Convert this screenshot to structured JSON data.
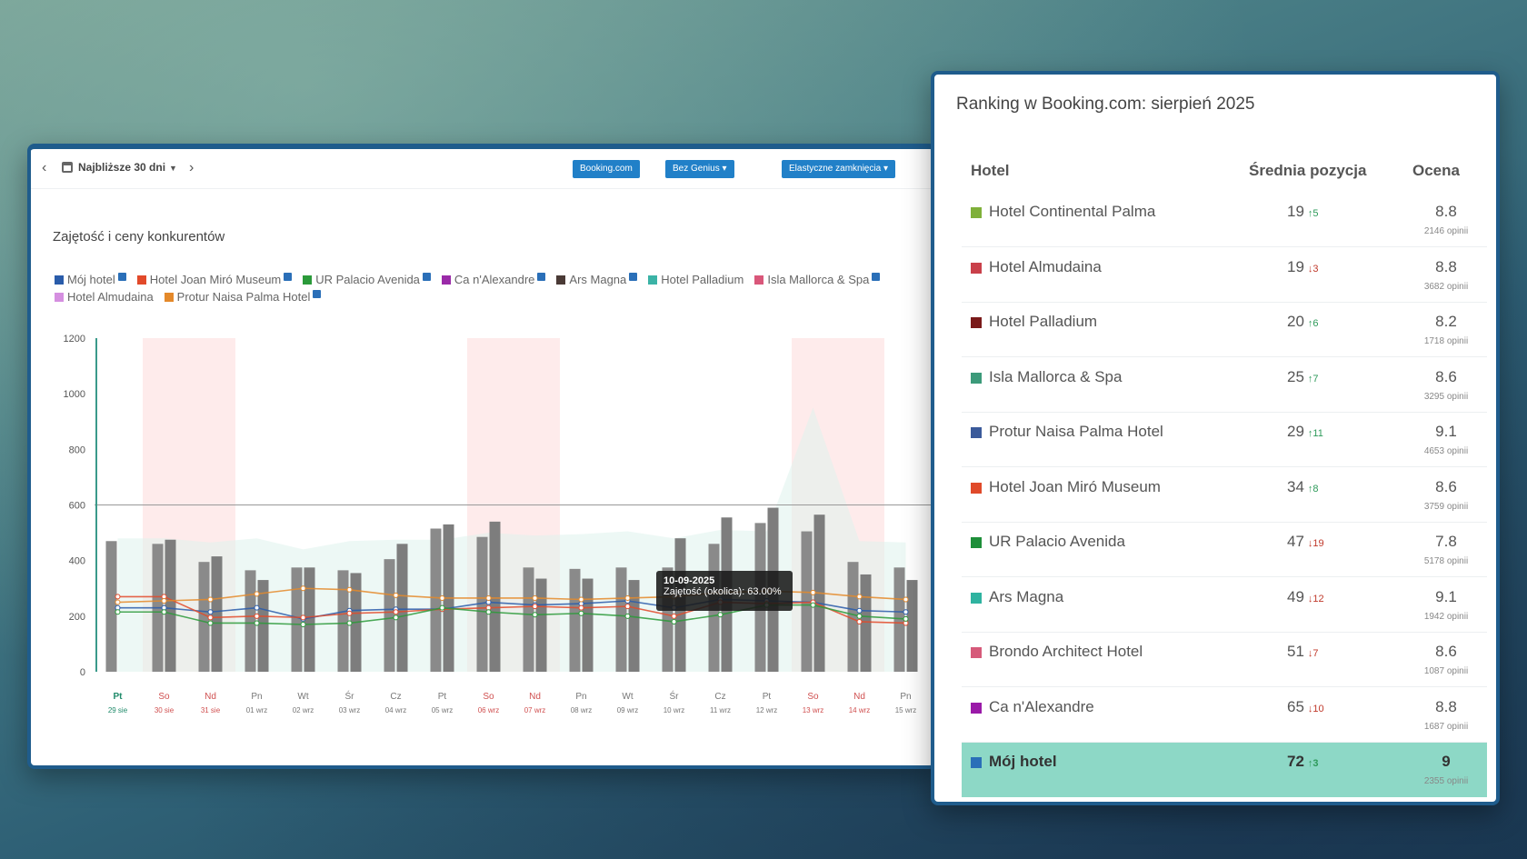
{
  "toolbar": {
    "range_label": "Najbliższe 30 dni",
    "btn_booking": "Booking.com",
    "btn_genius": "Bez Genius",
    "btn_closures": "Elastyczne zamknięcia"
  },
  "occupancy_chart": {
    "title": "Zajętość i ceny konkurentów",
    "legend": [
      {
        "name": "Mój hotel",
        "color": "#2a5caa",
        "badge": true
      },
      {
        "name": "Hotel Joan Miró Museum",
        "color": "#e24a2a",
        "badge": true
      },
      {
        "name": "UR Palacio Avenida",
        "color": "#2b9a3a",
        "badge": true
      },
      {
        "name": "Ca n'Alexandre",
        "color": "#9a2aa8",
        "badge": true
      },
      {
        "name": "Ars Magna",
        "color": "#4a3a36",
        "badge": true
      },
      {
        "name": "Hotel Palladium",
        "color": "#3bb3a6",
        "badge": false
      },
      {
        "name": "Isla Mallorca & Spa",
        "color": "#d9577a",
        "badge": true
      },
      {
        "name": "Hotel Almudaina",
        "color": "#d58fe0",
        "badge": false
      },
      {
        "name": "Protur Naisa Palma Hotel",
        "color": "#e4892a",
        "badge": true
      }
    ],
    "tooltip": {
      "date": "10-09-2025",
      "text": "Zajętość (okolica): 63.00%"
    }
  },
  "chart_data": {
    "type": "bar",
    "ylim": [
      0,
      1200
    ],
    "yticks": [
      0,
      200,
      400,
      600,
      800,
      1000,
      1200
    ],
    "reference_line": 600,
    "days": [
      {
        "d": "Pt",
        "date": "29 sie",
        "today": true,
        "weekend": false
      },
      {
        "d": "So",
        "date": "30 sie",
        "today": false,
        "weekend": true
      },
      {
        "d": "Nd",
        "date": "31 sie",
        "today": false,
        "weekend": true
      },
      {
        "d": "Pn",
        "date": "01 wrz",
        "today": false,
        "weekend": false
      },
      {
        "d": "Wt",
        "date": "02 wrz",
        "today": false,
        "weekend": false
      },
      {
        "d": "Śr",
        "date": "03 wrz",
        "today": false,
        "weekend": false
      },
      {
        "d": "Cz",
        "date": "04 wrz",
        "today": false,
        "weekend": false
      },
      {
        "d": "Pt",
        "date": "05 wrz",
        "today": false,
        "weekend": false
      },
      {
        "d": "So",
        "date": "06 wrz",
        "today": false,
        "weekend": true
      },
      {
        "d": "Nd",
        "date": "07 wrz",
        "today": false,
        "weekend": true
      },
      {
        "d": "Pn",
        "date": "08 wrz",
        "today": false,
        "weekend": false
      },
      {
        "d": "Wt",
        "date": "09 wrz",
        "today": false,
        "weekend": false
      },
      {
        "d": "Śr",
        "date": "10 wrz",
        "today": false,
        "weekend": false
      },
      {
        "d": "Cz",
        "date": "11 wrz",
        "today": false,
        "weekend": false
      },
      {
        "d": "Pt",
        "date": "12 wrz",
        "today": false,
        "weekend": false
      },
      {
        "d": "So",
        "date": "13 wrz",
        "today": false,
        "weekend": true
      },
      {
        "d": "Nd",
        "date": "14 wrz",
        "today": false,
        "weekend": true
      },
      {
        "d": "Pn",
        "date": "15 wrz",
        "today": false,
        "weekend": false
      }
    ],
    "bars_a": [
      470,
      460,
      395,
      365,
      375,
      365,
      405,
      515,
      485,
      375,
      370,
      375,
      375,
      460,
      535,
      505,
      395,
      375
    ],
    "bars_b": [
      0,
      475,
      415,
      330,
      375,
      355,
      460,
      530,
      540,
      335,
      335,
      330,
      480,
      555,
      590,
      565,
      350,
      330
    ],
    "series": [
      {
        "name": "Mój hotel",
        "color": "#2a5caa",
        "values": [
          230,
          230,
          215,
          230,
          190,
          220,
          225,
          225,
          250,
          240,
          245,
          255,
          230,
          260,
          255,
          250,
          220,
          215
        ]
      },
      {
        "name": "Hotel Joan Miró Museum",
        "color": "#e24a2a",
        "values": [
          270,
          270,
          195,
          200,
          195,
          210,
          215,
          225,
          230,
          235,
          230,
          235,
          200,
          250,
          245,
          250,
          180,
          175
        ]
      },
      {
        "name": "UR Palacio Avenida",
        "color": "#2b9a3a",
        "values": [
          215,
          215,
          175,
          175,
          170,
          175,
          195,
          230,
          215,
          205,
          210,
          200,
          180,
          205,
          240,
          240,
          200,
          190
        ]
      },
      {
        "name": "Protur Naisa Palma Hotel",
        "color": "#e4892a",
        "values": [
          250,
          255,
          260,
          280,
          300,
          295,
          275,
          265,
          265,
          265,
          260,
          265,
          270,
          285,
          290,
          285,
          270,
          260
        ]
      }
    ]
  },
  "ranking": {
    "title": "Ranking w Booking.com: sierpień 2025",
    "col_hotel": "Hotel",
    "col_position": "Średnia pozycja",
    "col_score": "Ocena",
    "rows": [
      {
        "name": "Hotel Continental Palma",
        "color": "#7fb03a",
        "pos": "19",
        "trend": "↑5",
        "dir": "up",
        "score": "8.8",
        "reviews": "2146 opinii",
        "mine": false
      },
      {
        "name": "Hotel Almudaina",
        "color": "#c9404a",
        "pos": "19",
        "trend": "↓3",
        "dir": "down",
        "score": "8.8",
        "reviews": "3682 opinii",
        "mine": false
      },
      {
        "name": "Hotel Palladium",
        "color": "#7a1a1a",
        "pos": "20",
        "trend": "↑6",
        "dir": "up",
        "score": "8.2",
        "reviews": "1718 opinii",
        "mine": false
      },
      {
        "name": "Isla Mallorca & Spa",
        "color": "#3c9a7a",
        "pos": "25",
        "trend": "↑7",
        "dir": "up",
        "score": "8.6",
        "reviews": "3295 opinii",
        "mine": false
      },
      {
        "name": "Protur Naisa Palma Hotel",
        "color": "#3b5a9a",
        "pos": "29",
        "trend": "↑11",
        "dir": "up",
        "score": "9.1",
        "reviews": "4653 opinii",
        "mine": false
      },
      {
        "name": "Hotel Joan Miró Museum",
        "color": "#e04a2a",
        "pos": "34",
        "trend": "↑8",
        "dir": "up",
        "score": "8.6",
        "reviews": "3759 opinii",
        "mine": false
      },
      {
        "name": "UR Palacio Avenida",
        "color": "#1e8f3a",
        "pos": "47",
        "trend": "↓19",
        "dir": "down",
        "score": "7.8",
        "reviews": "5178 opinii",
        "mine": false
      },
      {
        "name": "Ars Magna",
        "color": "#2fb3a0",
        "pos": "49",
        "trend": "↓12",
        "dir": "down",
        "score": "9.1",
        "reviews": "1942 opinii",
        "mine": false
      },
      {
        "name": "Brondo Architect Hotel",
        "color": "#d65a7a",
        "pos": "51",
        "trend": "↓7",
        "dir": "down",
        "score": "8.6",
        "reviews": "1087 opinii",
        "mine": false
      },
      {
        "name": "Ca n'Alexandre",
        "color": "#9a1aa8",
        "pos": "65",
        "trend": "↓10",
        "dir": "down",
        "score": "8.8",
        "reviews": "1687 opinii",
        "mine": false
      },
      {
        "name": "Mój hotel",
        "color": "#2a6fb8",
        "pos": "72",
        "trend": "↑3",
        "dir": "up",
        "score": "9",
        "reviews": "2355 opinii",
        "mine": true
      }
    ]
  }
}
